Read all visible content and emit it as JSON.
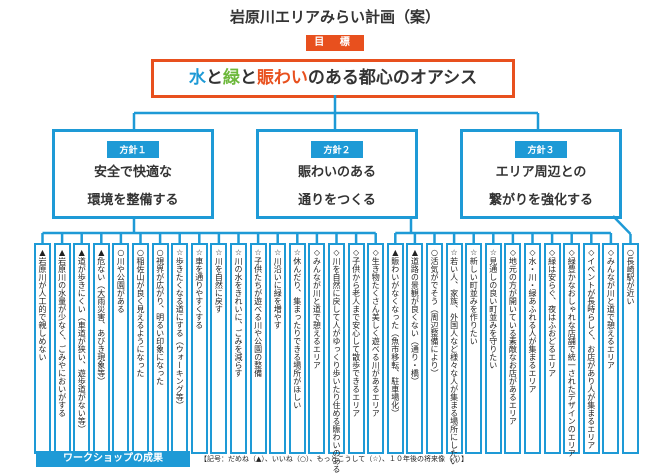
{
  "title": "岩原川エリアみらい計画（案）",
  "goal": {
    "tag": "目 標",
    "parts": {
      "water": "水",
      "and1": "と",
      "green": "緑",
      "and2": "と",
      "bustle": "賑わい",
      "rest": "のある都心のオアシス"
    }
  },
  "colors": {
    "blue": "#1e9ad6",
    "orange": "#e8501e",
    "green": "#6cb83a"
  },
  "policies": [
    {
      "tag": "方針１",
      "line1": "安全で快適な",
      "line2": "環境を整備する"
    },
    {
      "tag": "方針２",
      "line1": "賑わいのある",
      "line2": "通りをつくる"
    },
    {
      "tag": "方針３",
      "line1": "エリア周辺との",
      "line2": "繋がりを強化する"
    }
  ],
  "items": [
    "▲岩原川が人工的で親しめない",
    "▲岩原川の水量が少なく、ごみやにおいがする",
    "▲道が歩きにくい（車道が狭い、遊歩道がない等）",
    "▲危ない（大雨災害、あびき現象等）",
    "○川や公園がある",
    "○稲佐山が良く見えるようになった",
    "○視界が広がり、明るい印象になった",
    "☆歩きたくなる道にする（ウォーキング等）",
    "☆車を通りやすくする",
    "☆川を自然に戻す",
    "☆川の水をきれいに、ごみを減らす",
    "☆子供たちが遊べる川や公園の整備",
    "☆川沿いに緑を増やす",
    "☆休んだり、集まったりできる場所がほしい",
    "◇みんなが川と道で憩えるエリア",
    "◇川を自然に戻して人がゆっくり歩いたり住める賑わいのあるエリア",
    "◇子供から老人まで安心して散歩できるエリア",
    "◇生き物たくさん美しく遊べる川があるエリア",
    "▲賑わいがなくなった（魚市移転、駐車場化）",
    "▲道路の景観が良くない（通り・橋）",
    "○活気がでそう（周辺整備により）",
    "☆若い人、家族、外国人など様々な人が集まる場所にしたい",
    "☆新しい町並みを作りたい",
    "☆見通しの良い町並みを守りたい",
    "◇地元の方が開いている素敵なお店があるエリア",
    "◇水・川・緑あふれる人が集まるエリア",
    "◇緑は安らぐ、夜はふおどるエリア",
    "◇緑豊かなおしゃれな店舗で統一されたデザインのエリア",
    "◇イベントが長時らしく、お店があり人が集まるエリア",
    "◇みんなが川と道で憩えるエリア",
    "○長崎駅が近い"
  ],
  "footer": {
    "label": "ワークショップの成果",
    "legend": "【記号：だめね（▲）、いいね（○）、もっとこうして（☆）、１０年後の将来像（◇）】"
  }
}
